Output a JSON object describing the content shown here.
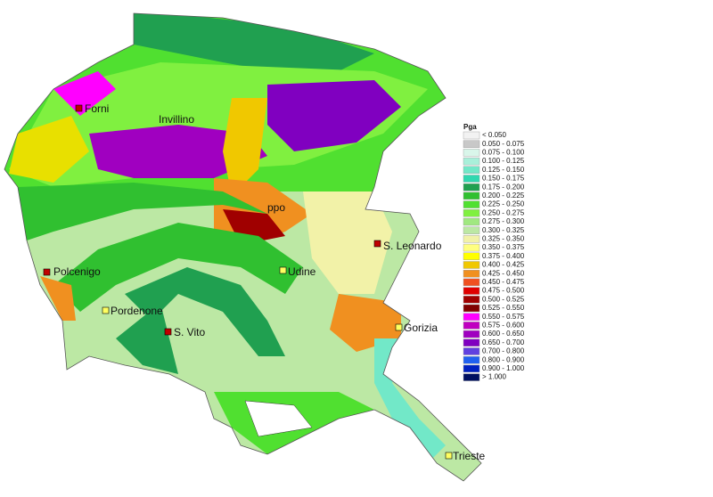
{
  "places": [
    {
      "name": "Forni"
    },
    {
      "name": "Invillino"
    },
    {
      "name": "ppo"
    },
    {
      "name": "S. Leonardo"
    },
    {
      "name": "Polcenigo"
    },
    {
      "name": "Udine"
    },
    {
      "name": "Pordenone"
    },
    {
      "name": "S. Vito"
    },
    {
      "name": "Gorizia"
    },
    {
      "name": "Trieste"
    }
  ],
  "legend": {
    "title": "Pga",
    "entries": [
      {
        "label": "< 0.050",
        "color": "#f2f2f2"
      },
      {
        "label": "0.050 - 0.075",
        "color": "#c8c8c8"
      },
      {
        "label": "0.075 - 0.100",
        "color": "#d9f6ea"
      },
      {
        "label": "0.100 - 0.125",
        "color": "#a9f0da"
      },
      {
        "label": "0.125 - 0.150",
        "color": "#72e8c8"
      },
      {
        "label": "0.150 - 0.175",
        "color": "#30d8b0"
      },
      {
        "label": "0.175 - 0.200",
        "color": "#20a050"
      },
      {
        "label": "0.200 - 0.225",
        "color": "#30c030"
      },
      {
        "label": "0.225 - 0.250",
        "color": "#50e030"
      },
      {
        "label": "0.250 - 0.275",
        "color": "#80f040"
      },
      {
        "label": "0.275 - 0.300",
        "color": "#a0e880"
      },
      {
        "label": "0.300 - 0.325",
        "color": "#bce8a4"
      },
      {
        "label": "0.325 - 0.350",
        "color": "#f2f2a8"
      },
      {
        "label": "0.350 - 0.375",
        "color": "#ffff80"
      },
      {
        "label": "0.375 - 0.400",
        "color": "#ffff00"
      },
      {
        "label": "0.400 - 0.425",
        "color": "#f0c800"
      },
      {
        "label": "0.425 - 0.450",
        "color": "#f09020"
      },
      {
        "label": "0.450 - 0.475",
        "color": "#f05020"
      },
      {
        "label": "0.475 - 0.500",
        "color": "#e00000"
      },
      {
        "label": "0.500 - 0.525",
        "color": "#a00000"
      },
      {
        "label": "0.525 - 0.550",
        "color": "#800000"
      },
      {
        "label": "0.550 - 0.575",
        "color": "#ff00ff"
      },
      {
        "label": "0.575 - 0.600",
        "color": "#c000c0"
      },
      {
        "label": "0.600 - 0.650",
        "color": "#a000c0"
      },
      {
        "label": "0.650 - 0.700",
        "color": "#8000c0"
      },
      {
        "label": "0.700 - 0.800",
        "color": "#6040e0"
      },
      {
        "label": "0.800 - 0.900",
        "color": "#2060f0"
      },
      {
        "label": "0.900 - 1.000",
        "color": "#0020c0"
      },
      {
        "label": "> 1.000",
        "color": "#001060"
      }
    ]
  }
}
